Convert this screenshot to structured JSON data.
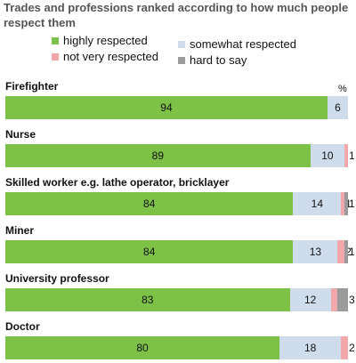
{
  "chart_data": {
    "type": "bar",
    "orientation": "horizontal-stacked",
    "title": "Trades and professions ranked according to how much people respect them",
    "unit_label": "%",
    "categories": [
      "Firefighter",
      "Nurse",
      "Skilled worker e.g. lathe operator, bricklayer",
      "Miner",
      "University professor",
      "Doctor"
    ],
    "series": [
      {
        "name": "highly respected",
        "color": "#7dc247",
        "values": [
          94,
          89,
          84,
          84,
          83,
          80
        ]
      },
      {
        "name": "somewhat respected",
        "color": "#cfdcec",
        "values": [
          6,
          10,
          14,
          13,
          12,
          18
        ]
      },
      {
        "name": "not very respected",
        "color": "#f2a7ab",
        "values": [
          0,
          1,
          1,
          2,
          2,
          2
        ]
      },
      {
        "name": "hard to say",
        "color": "#9b9b9b",
        "values": [
          0,
          0,
          1,
          1,
          3,
          0
        ]
      }
    ],
    "xlim": [
      0,
      100
    ],
    "legend_position": "top"
  }
}
